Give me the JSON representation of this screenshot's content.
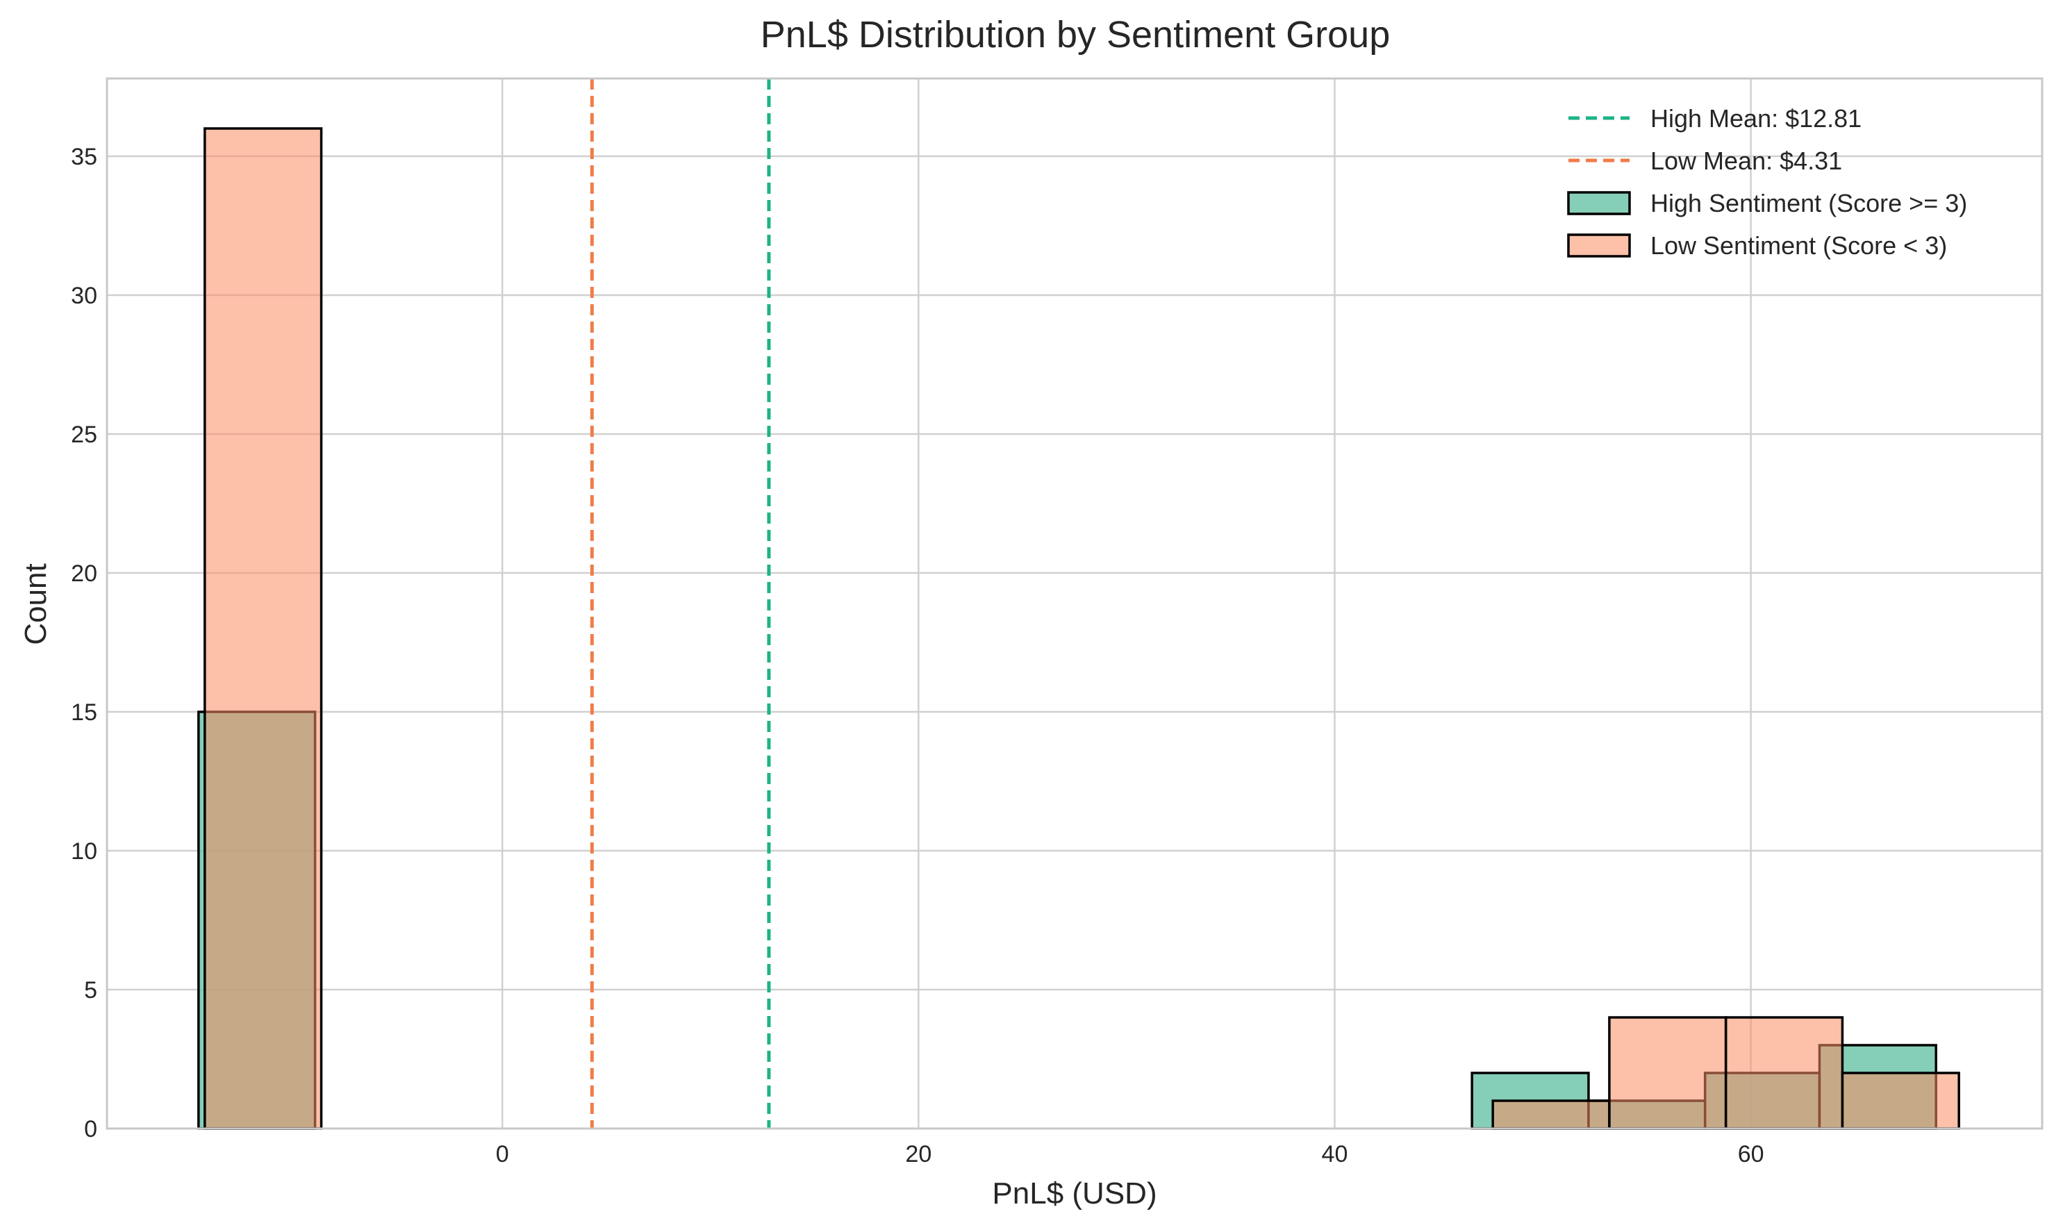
{
  "chart_data": {
    "type": "histogram",
    "title": "PnL$ Distribution by Sentiment Group",
    "xlabel": "PnL$ (USD)",
    "ylabel": "Count",
    "xlim": [
      -19,
      74
    ],
    "ylim": [
      0,
      37.8
    ],
    "xticks": [
      0,
      20,
      40,
      60
    ],
    "yticks": [
      0,
      5,
      10,
      15,
      20,
      25,
      30,
      35
    ],
    "grid": true,
    "legend_position": "top-right",
    "series": [
      {
        "name": "High Sentiment (Score >= 3)",
        "color": "#66c2a5",
        "opacity": 0.8,
        "bins": [
          {
            "x0": -14.6,
            "x1": -9.0,
            "count": 15
          },
          {
            "x0": 46.6,
            "x1": 52.2,
            "count": 2
          },
          {
            "x0": 52.2,
            "x1": 57.8,
            "count": 1
          },
          {
            "x0": 57.8,
            "x1": 63.3,
            "count": 2
          },
          {
            "x0": 63.3,
            "x1": 68.9,
            "count": 3
          }
        ]
      },
      {
        "name": "Low Sentiment (Score < 3)",
        "color": "#fc8d62",
        "opacity": 0.55,
        "bins": [
          {
            "x0": -14.3,
            "x1": -8.7,
            "count": 36
          },
          {
            "x0": 47.6,
            "x1": 53.2,
            "count": 1
          },
          {
            "x0": 53.2,
            "x1": 58.8,
            "count": 4
          },
          {
            "x0": 58.8,
            "x1": 64.4,
            "count": 4
          },
          {
            "x0": 64.4,
            "x1": 70.0,
            "count": 2
          }
        ]
      }
    ],
    "mean_lines": [
      {
        "name": "High Mean: $12.81",
        "x": 12.81,
        "color": "#1db386"
      },
      {
        "name": "Low Mean: $4.31",
        "x": 4.31,
        "color": "#f07c4a"
      }
    ]
  }
}
